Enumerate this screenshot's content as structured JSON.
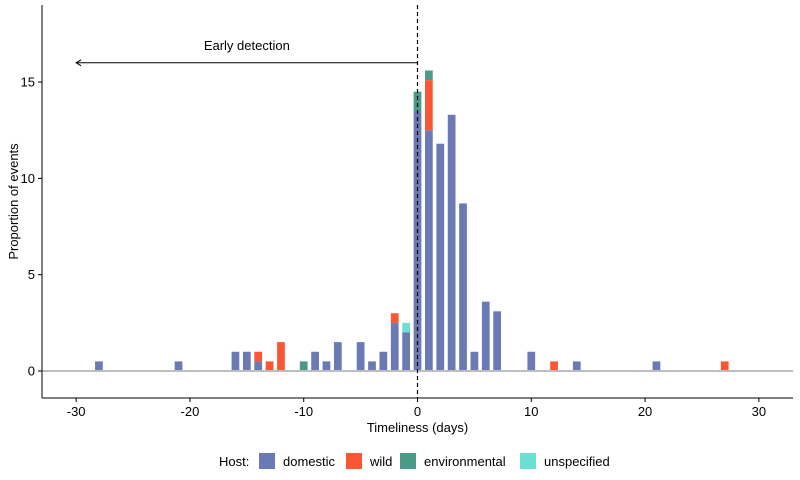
{
  "chart_data": {
    "type": "bar",
    "stacked": true,
    "xlabel": "Timeliness (days)",
    "ylabel": "Proportion of events",
    "xlim": [
      -33,
      33
    ],
    "ylim": [
      -1.4,
      19
    ],
    "xticks": [
      -30,
      -20,
      -10,
      0,
      10,
      20,
      30
    ],
    "yticks": [
      0,
      5,
      10,
      15
    ],
    "grid": false,
    "legend": {
      "title": "Host:",
      "position": "bottom",
      "entries": [
        "domestic",
        "wild",
        "environmental",
        "unspecified"
      ]
    },
    "annotations": {
      "vline_x": 0,
      "arrow": {
        "text": "Early detection",
        "from_x": 0,
        "to_x": -30,
        "y": 16
      }
    },
    "series": [
      {
        "name": "domestic",
        "color": "#6B7AB5",
        "points": [
          [
            -28,
            0.5
          ],
          [
            -21,
            0.5
          ],
          [
            -16,
            1.0
          ],
          [
            -15,
            1.0
          ],
          [
            -14,
            0.5
          ],
          [
            -9,
            1.0
          ],
          [
            -8,
            0.5
          ],
          [
            -7,
            1.5
          ],
          [
            -5,
            1.5
          ],
          [
            -4,
            0.5
          ],
          [
            -3,
            1.0
          ],
          [
            -2,
            2.5
          ],
          [
            -1,
            2.0
          ],
          [
            0,
            13.5
          ],
          [
            1,
            12.5
          ],
          [
            2,
            11.8
          ],
          [
            3,
            13.3
          ],
          [
            4,
            8.7
          ],
          [
            5,
            1.0
          ],
          [
            6,
            3.6
          ],
          [
            7,
            3.1
          ],
          [
            10,
            1.0
          ],
          [
            14,
            0.5
          ],
          [
            21,
            0.5
          ]
        ]
      },
      {
        "name": "wild",
        "color": "#FA5535",
        "points": [
          [
            -14,
            0.5
          ],
          [
            -13,
            0.5
          ],
          [
            -12,
            1.5
          ],
          [
            -2,
            0.5
          ],
          [
            1,
            2.6
          ],
          [
            12,
            0.5
          ],
          [
            27,
            0.5
          ]
        ]
      },
      {
        "name": "environmental",
        "color": "#4A9A88",
        "points": [
          [
            -10,
            0.5
          ],
          [
            0,
            1.0
          ],
          [
            1,
            0.5
          ]
        ]
      },
      {
        "name": "unspecified",
        "color": "#6BDFD3",
        "points": [
          [
            -1,
            0.5
          ]
        ]
      }
    ]
  }
}
